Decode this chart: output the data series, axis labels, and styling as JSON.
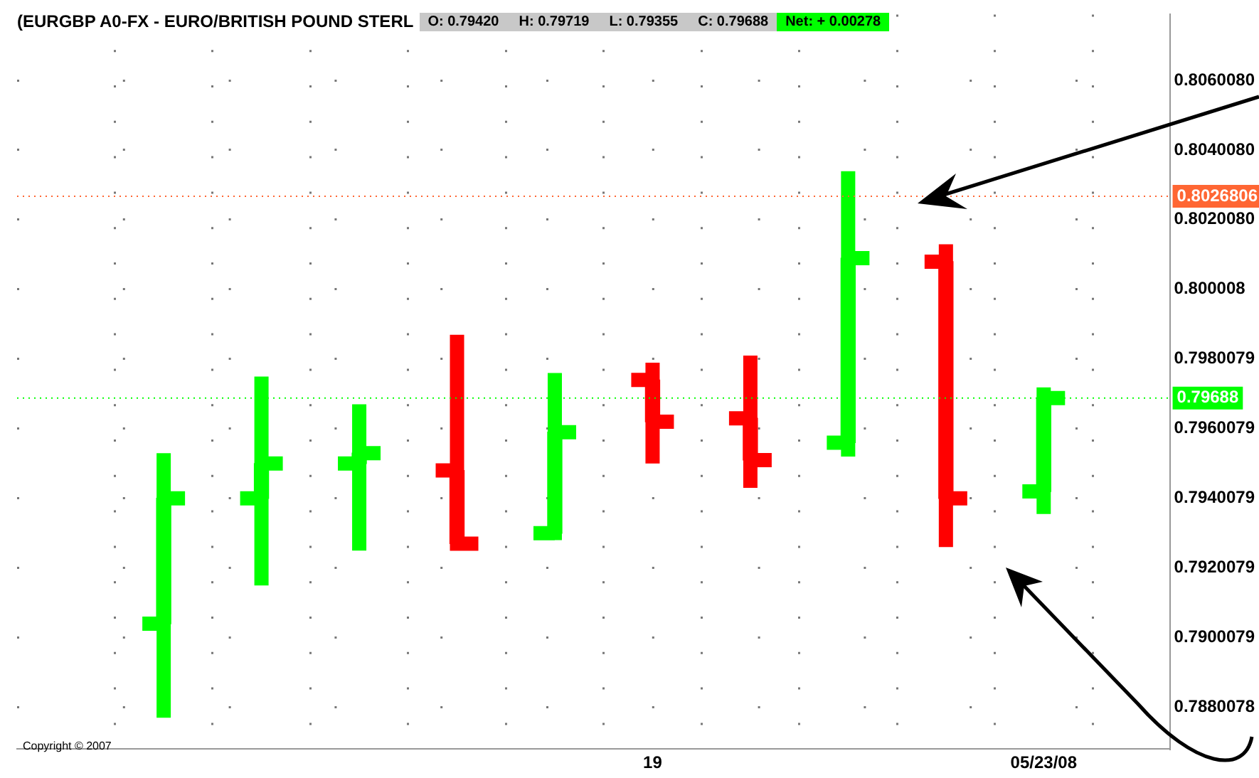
{
  "chart_data": {
    "type": "candlestick",
    "title": "(EURGBP A0-FX - EURO/BRITISH POUND STERL",
    "categories": [
      null,
      null,
      null,
      null,
      null,
      "19",
      null,
      null,
      null,
      "05/23/08"
    ],
    "ohlc": [
      [
        0.7904,
        0.7953,
        0.7877,
        0.794
      ],
      [
        0.794,
        0.7975,
        0.7915,
        0.795
      ],
      [
        0.795,
        0.7967,
        0.7925,
        0.7953
      ],
      [
        0.7948,
        0.7987,
        0.7925,
        0.7927
      ],
      [
        0.793,
        0.7976,
        0.7928,
        0.7959
      ],
      [
        0.7974,
        0.7979,
        0.795,
        0.7962
      ],
      [
        0.7963,
        0.7981,
        0.7943,
        0.7951
      ],
      [
        0.7956,
        0.8034,
        0.7952,
        0.8009
      ],
      [
        0.8008,
        0.8013,
        0.7926,
        0.794
      ],
      [
        0.7942,
        0.79719,
        0.79355,
        0.79688
      ]
    ],
    "colors": [
      "#00ff00",
      "#00ff00",
      "#00ff00",
      "#ff0000",
      "#00ff00",
      "#ff0000",
      "#ff0000",
      "#00ff00",
      "#ff0000",
      "#00ff00"
    ],
    "ylim": [
      0.7868,
      0.8079
    ],
    "yticks": [
      {
        "value": 0.806008,
        "label": "0.8060080"
      },
      {
        "value": 0.804008,
        "label": "0.8040080"
      },
      {
        "value": 0.802008,
        "label": "0.8020080"
      },
      0.800008,
      0.7980079,
      0.7960079,
      0.7940079,
      0.7920079,
      0.7900079,
      0.7880078
    ],
    "ref_lines": [
      {
        "axis": "y",
        "value": 0.8026806,
        "label": "0.8026806",
        "color": "#ff6633",
        "line_style": "dotted"
      },
      {
        "axis": "y",
        "value": 0.79688,
        "label": "0.79688",
        "color": "#00ff00",
        "line_style": "dotted"
      }
    ],
    "annotations": [
      "O: 0.79420",
      "H: 0.79719",
      "L: 0.79355",
      "C: 0.79688",
      "Net: + 0.00278",
      "Copyright © 2007"
    ],
    "grid": true,
    "legend": false
  }
}
